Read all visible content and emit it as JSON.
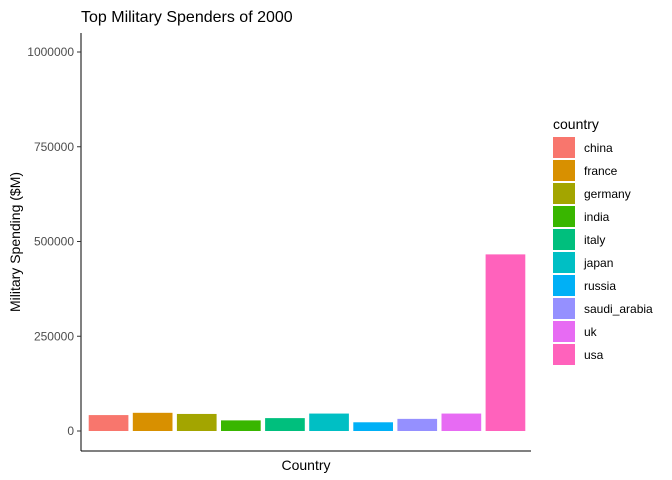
{
  "chart_data": {
    "type": "bar",
    "title": "Top Military Spenders of 2000",
    "xlabel": "Country",
    "ylabel": "Military Spending ($M)",
    "ylim": [
      0,
      1000000
    ],
    "yticks": [
      0,
      250000,
      500000,
      750000,
      1000000
    ],
    "ytick_labels": [
      "0",
      "250000",
      "500000",
      "750000",
      "1000000"
    ],
    "grid": false,
    "legend": {
      "title": "country",
      "position": "right"
    },
    "categories": [
      "china",
      "france",
      "germany",
      "india",
      "italy",
      "japan",
      "russia",
      "saudi_arabia",
      "uk",
      "usa"
    ],
    "values": [
      42000,
      48000,
      45000,
      28000,
      34000,
      46000,
      23000,
      32000,
      46000,
      466000
    ],
    "colors": [
      "#F8766D",
      "#D89000",
      "#A3A500",
      "#39B600",
      "#00BF7D",
      "#00BFC4",
      "#00B0F6",
      "#9590FF",
      "#E76BF3",
      "#FF62BC"
    ]
  }
}
